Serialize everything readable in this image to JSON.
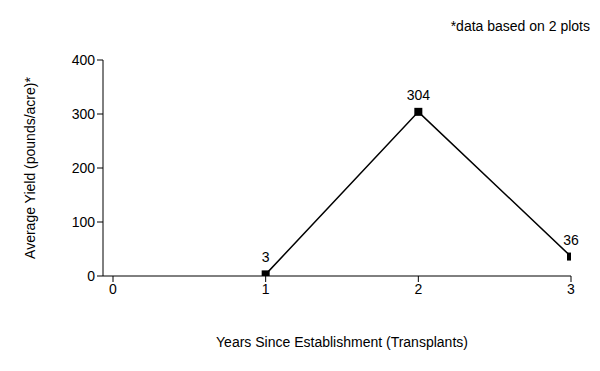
{
  "chart_data": {
    "type": "line",
    "x": [
      1,
      2,
      3
    ],
    "values": [
      3,
      304,
      36
    ],
    "xlim": [
      0,
      3
    ],
    "xticks": [
      0,
      1,
      2,
      3
    ],
    "ylim": [
      0,
      400
    ],
    "yticks": [
      0,
      100,
      200,
      300,
      400
    ],
    "xlabel": "Years Since Establishment (Transplants)",
    "ylabel": "Average Yield (pounds/acre)*",
    "annotation": "*data based on 2 plots",
    "color": "#000000",
    "marker": "square",
    "data_labels": true,
    "grid": false
  }
}
